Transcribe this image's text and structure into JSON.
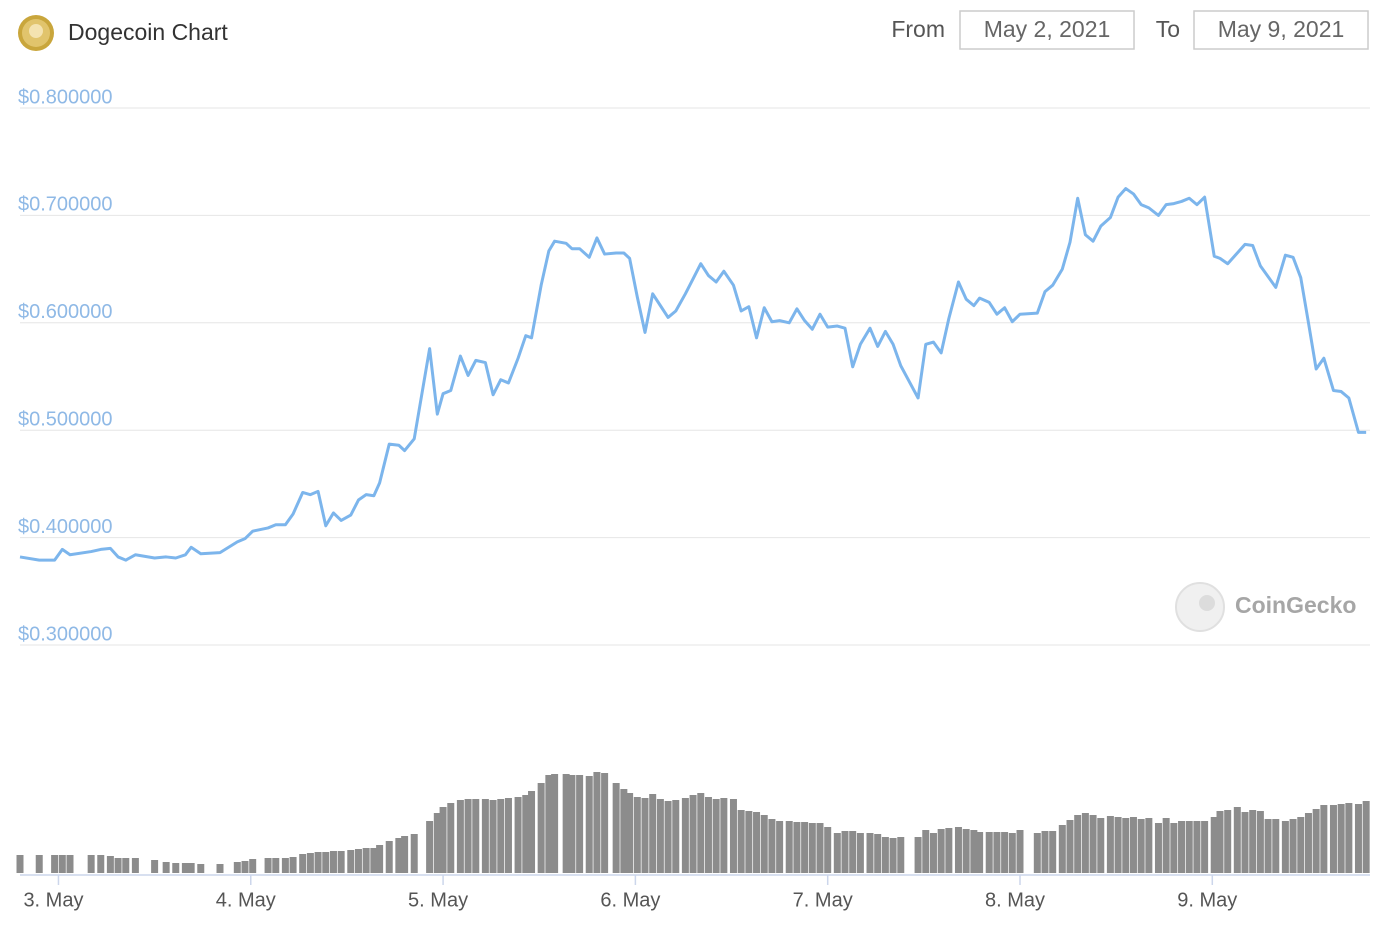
{
  "header": {
    "title": "Dogecoin Chart",
    "from_label": "From",
    "from_date": "May 2, 2021",
    "to_label": "To",
    "to_date": "May 9, 2021"
  },
  "watermark": "CoinGecko",
  "chart_data": {
    "type": "line",
    "color": "#7cb5ec",
    "grid": true,
    "xlim": [
      2.8,
      9.82
    ],
    "xticks": [
      {
        "value": 3,
        "label": "3. May"
      },
      {
        "value": 4,
        "label": "4. May"
      },
      {
        "value": 5,
        "label": "5. May"
      },
      {
        "value": 6,
        "label": "6. May"
      },
      {
        "value": 7,
        "label": "7. May"
      },
      {
        "value": 8,
        "label": "8. May"
      },
      {
        "value": 9,
        "label": "9. May"
      }
    ],
    "ylim": [
      0.3,
      0.8
    ],
    "yticks": [
      {
        "value": 0.3,
        "label": "$0.300000"
      },
      {
        "value": 0.4,
        "label": "$0.400000"
      },
      {
        "value": 0.5,
        "label": "$0.500000"
      },
      {
        "value": 0.6,
        "label": "$0.600000"
      },
      {
        "value": 0.7,
        "label": "$0.700000"
      },
      {
        "value": 0.8,
        "label": "$0.800000"
      }
    ],
    "x": [
      2.8,
      2.9,
      2.98,
      3.02,
      3.06,
      3.17,
      3.22,
      3.27,
      3.31,
      3.35,
      3.4,
      3.5,
      3.56,
      3.61,
      3.66,
      3.69,
      3.74,
      3.84,
      3.93,
      3.97,
      4.01,
      4.09,
      4.13,
      4.18,
      4.22,
      4.27,
      4.31,
      4.35,
      4.39,
      4.43,
      4.47,
      4.52,
      4.56,
      4.6,
      4.64,
      4.67,
      4.72,
      4.77,
      4.8,
      4.85,
      4.93,
      4.97,
      5.0,
      5.04,
      5.09,
      5.13,
      5.17,
      5.22,
      5.26,
      5.3,
      5.34,
      5.39,
      5.43,
      5.46,
      5.51,
      5.55,
      5.58,
      5.64,
      5.67,
      5.71,
      5.76,
      5.8,
      5.84,
      5.9,
      5.94,
      5.97,
      6.01,
      6.05,
      6.09,
      6.13,
      6.17,
      6.21,
      6.26,
      6.3,
      6.34,
      6.38,
      6.42,
      6.46,
      6.51,
      6.55,
      6.59,
      6.63,
      6.67,
      6.71,
      6.75,
      6.8,
      6.84,
      6.88,
      6.92,
      6.96,
      7.0,
      7.05,
      7.09,
      7.13,
      7.17,
      7.22,
      7.26,
      7.3,
      7.34,
      7.38,
      7.47,
      7.51,
      7.55,
      7.59,
      7.63,
      7.68,
      7.72,
      7.76,
      7.79,
      7.84,
      7.88,
      7.92,
      7.96,
      8.0,
      8.09,
      8.13,
      8.17,
      8.22,
      8.26,
      8.3,
      8.34,
      8.38,
      8.42,
      8.47,
      8.51,
      8.55,
      8.59,
      8.63,
      8.67,
      8.72,
      8.76,
      8.8,
      8.84,
      8.88,
      8.92,
      8.96,
      9.01,
      9.04,
      9.08,
      9.13,
      9.17,
      9.21,
      9.25,
      9.29,
      9.33,
      9.38,
      9.42,
      9.46,
      9.5,
      9.54,
      9.58,
      9.63,
      9.67,
      9.71,
      9.76,
      9.8
    ],
    "values": [
      0.382,
      0.379,
      0.379,
      0.389,
      0.384,
      0.387,
      0.389,
      0.39,
      0.382,
      0.379,
      0.384,
      0.381,
      0.382,
      0.381,
      0.384,
      0.391,
      0.385,
      0.386,
      0.396,
      0.399,
      0.406,
      0.409,
      0.412,
      0.412,
      0.422,
      0.442,
      0.44,
      0.443,
      0.411,
      0.423,
      0.416,
      0.421,
      0.435,
      0.44,
      0.439,
      0.451,
      0.487,
      0.486,
      0.481,
      0.492,
      0.576,
      0.515,
      0.534,
      0.537,
      0.569,
      0.551,
      0.565,
      0.563,
      0.533,
      0.547,
      0.544,
      0.567,
      0.588,
      0.586,
      0.635,
      0.667,
      0.676,
      0.674,
      0.669,
      0.669,
      0.661,
      0.679,
      0.664,
      0.665,
      0.665,
      0.66,
      0.624,
      0.591,
      0.627,
      0.616,
      0.605,
      0.611,
      0.627,
      0.641,
      0.655,
      0.644,
      0.638,
      0.648,
      0.635,
      0.611,
      0.615,
      0.586,
      0.614,
      0.601,
      0.602,
      0.6,
      0.613,
      0.602,
      0.594,
      0.608,
      0.596,
      0.597,
      0.595,
      0.559,
      0.58,
      0.595,
      0.578,
      0.592,
      0.58,
      0.56,
      0.53,
      0.58,
      0.582,
      0.572,
      0.604,
      0.638,
      0.622,
      0.616,
      0.623,
      0.619,
      0.608,
      0.614,
      0.601,
      0.608,
      0.609,
      0.629,
      0.635,
      0.65,
      0.675,
      0.716,
      0.682,
      0.676,
      0.69,
      0.698,
      0.717,
      0.725,
      0.72,
      0.71,
      0.707,
      0.7,
      0.71,
      0.711,
      0.713,
      0.716,
      0.71,
      0.717,
      0.662,
      0.66,
      0.655,
      0.665,
      0.673,
      0.672,
      0.653,
      0.643,
      0.633,
      0.663,
      0.661,
      0.642,
      0.6,
      0.557,
      0.567,
      0.537,
      0.536,
      0.53,
      0.498,
      0.498
    ],
    "volume": {
      "color": "#8c8c8c",
      "ylim": [
        0,
        110
      ],
      "values": [
        18,
        18,
        18,
        18,
        18,
        18,
        18,
        17,
        15,
        15,
        15,
        13,
        11,
        10,
        10,
        10,
        9,
        9,
        11,
        12,
        14,
        15,
        15,
        15,
        16,
        19,
        20,
        21,
        21,
        22,
        22,
        23,
        24,
        25,
        25,
        28,
        32,
        35,
        37,
        39,
        52,
        60,
        66,
        70,
        73,
        74,
        74,
        74,
        73,
        74,
        75,
        76,
        78,
        82,
        90,
        98,
        99,
        99,
        98,
        98,
        97,
        101,
        100,
        90,
        84,
        80,
        76,
        75,
        79,
        74,
        72,
        73,
        75,
        78,
        80,
        76,
        74,
        75,
        74,
        63,
        62,
        61,
        58,
        54,
        52,
        52,
        51,
        51,
        50,
        50,
        46,
        40,
        42,
        42,
        40,
        40,
        39,
        36,
        35,
        36,
        36,
        43,
        40,
        44,
        45,
        46,
        44,
        43,
        41,
        41,
        41,
        41,
        40,
        43,
        40,
        42,
        42,
        48,
        53,
        58,
        60,
        58,
        55,
        57,
        56,
        55,
        56,
        54,
        55,
        50,
        55,
        50,
        52,
        52,
        52,
        52,
        56,
        62,
        63,
        66,
        61,
        63,
        62,
        54,
        54,
        52,
        54,
        56,
        60,
        64,
        68,
        68,
        69,
        70,
        69,
        72
      ]
    }
  }
}
